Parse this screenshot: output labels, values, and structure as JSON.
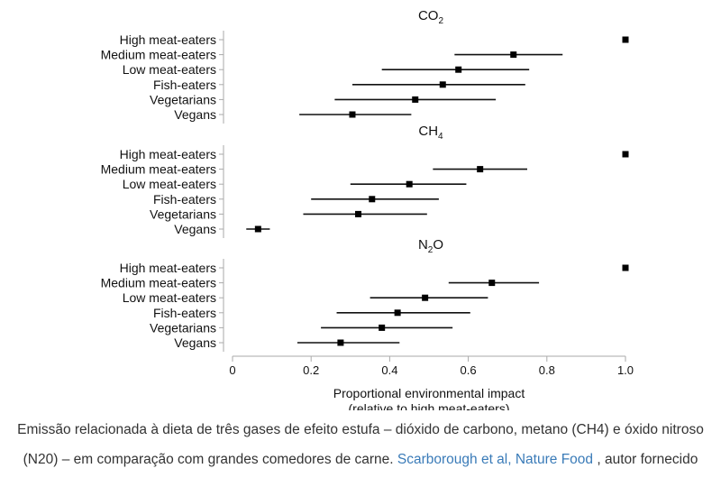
{
  "chart_data": {
    "type": "scatter",
    "style": "forest-plot",
    "categories": [
      "High meat-eaters",
      "Medium meat-eaters",
      "Low meat-eaters",
      "Fish-eaters",
      "Vegetarians",
      "Vegans"
    ],
    "xlabel": "Proportional environmental impact",
    "xlabel_sub": "(relative to high meat-eaters)",
    "xlim": [
      0,
      1.0
    ],
    "xticks": [
      "0",
      "0.2",
      "0.4",
      "0.6",
      "0.8",
      "1.0"
    ],
    "grid": false,
    "panels": [
      {
        "gas": "CO",
        "subscript": "2",
        "values": [
          1.0,
          0.715,
          0.575,
          0.535,
          0.465,
          0.305
        ],
        "lower": [
          null,
          0.565,
          0.38,
          0.305,
          0.26,
          0.17
        ],
        "upper": [
          null,
          0.84,
          0.755,
          0.745,
          0.67,
          0.455
        ]
      },
      {
        "gas": "CH",
        "subscript": "4",
        "values": [
          1.0,
          0.63,
          0.45,
          0.355,
          0.32,
          0.065
        ],
        "lower": [
          null,
          0.51,
          0.3,
          0.2,
          0.18,
          0.035
        ],
        "upper": [
          null,
          0.75,
          0.595,
          0.525,
          0.495,
          0.095
        ]
      },
      {
        "gas": "N",
        "subscript": "2",
        "suffix": "O",
        "values": [
          1.0,
          0.66,
          0.49,
          0.42,
          0.38,
          0.275
        ],
        "lower": [
          null,
          0.55,
          0.35,
          0.265,
          0.225,
          0.165
        ],
        "upper": [
          null,
          0.78,
          0.65,
          0.605,
          0.56,
          0.425
        ]
      }
    ]
  },
  "caption": {
    "text": "Emissão relacionada à dieta de três gases de efeito estufa – dióxido de carbono, metano (CH4) e óxido nitroso (N20) – em comparação com grandes comedores de carne. ",
    "link_text": "Scarborough et al, Nature Food",
    "suffix": " , autor fornecido"
  }
}
